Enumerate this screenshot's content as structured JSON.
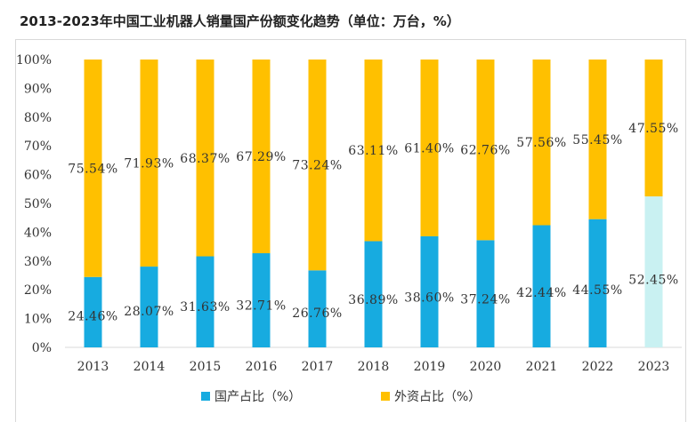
{
  "title": "2013-2023年中国工业机器人销量国产份额变化趋势（单位：万台，%）",
  "chart_data": {
    "type": "bar",
    "stacked": true,
    "title": "2013-2023年中国工业机器人销量国产份额变化趋势（单位：万台，%）",
    "categories": [
      "2013",
      "2014",
      "2015",
      "2016",
      "2017",
      "2018",
      "2019",
      "2020",
      "2021",
      "2022",
      "2023"
    ],
    "series": [
      {
        "name": "国产占比（%）",
        "color": "#17abe0",
        "values": [
          24.46,
          28.07,
          31.63,
          32.71,
          26.76,
          36.89,
          38.6,
          37.24,
          42.44,
          44.55,
          52.45
        ],
        "labels": [
          "24.46%",
          "28.07%",
          "31.63%",
          "32.71%",
          "26.76%",
          "36.89%",
          "38.60%",
          "37.24%",
          "42.44%",
          "44.55%",
          "52.45%"
        ]
      },
      {
        "name": "外资占比（%）",
        "color": "#ffc000",
        "values": [
          75.54,
          71.93,
          68.37,
          67.29,
          73.24,
          63.11,
          61.4,
          62.76,
          57.56,
          55.45,
          47.55
        ],
        "labels": [
          "75.54%",
          "71.93%",
          "68.37%",
          "67.29%",
          "73.24%",
          "63.11%",
          "61.40%",
          "62.76%",
          "57.56%",
          "55.45%",
          "47.55%"
        ]
      }
    ],
    "highlight": {
      "category": "2023",
      "domestic_color": "#c9f1f2"
    },
    "ylim": [
      0,
      100
    ],
    "yticks": [
      "0%",
      "10%",
      "20%",
      "30%",
      "40%",
      "50%",
      "60%",
      "70%",
      "80%",
      "90%",
      "100%"
    ],
    "grid": false,
    "legend": "bottom"
  }
}
